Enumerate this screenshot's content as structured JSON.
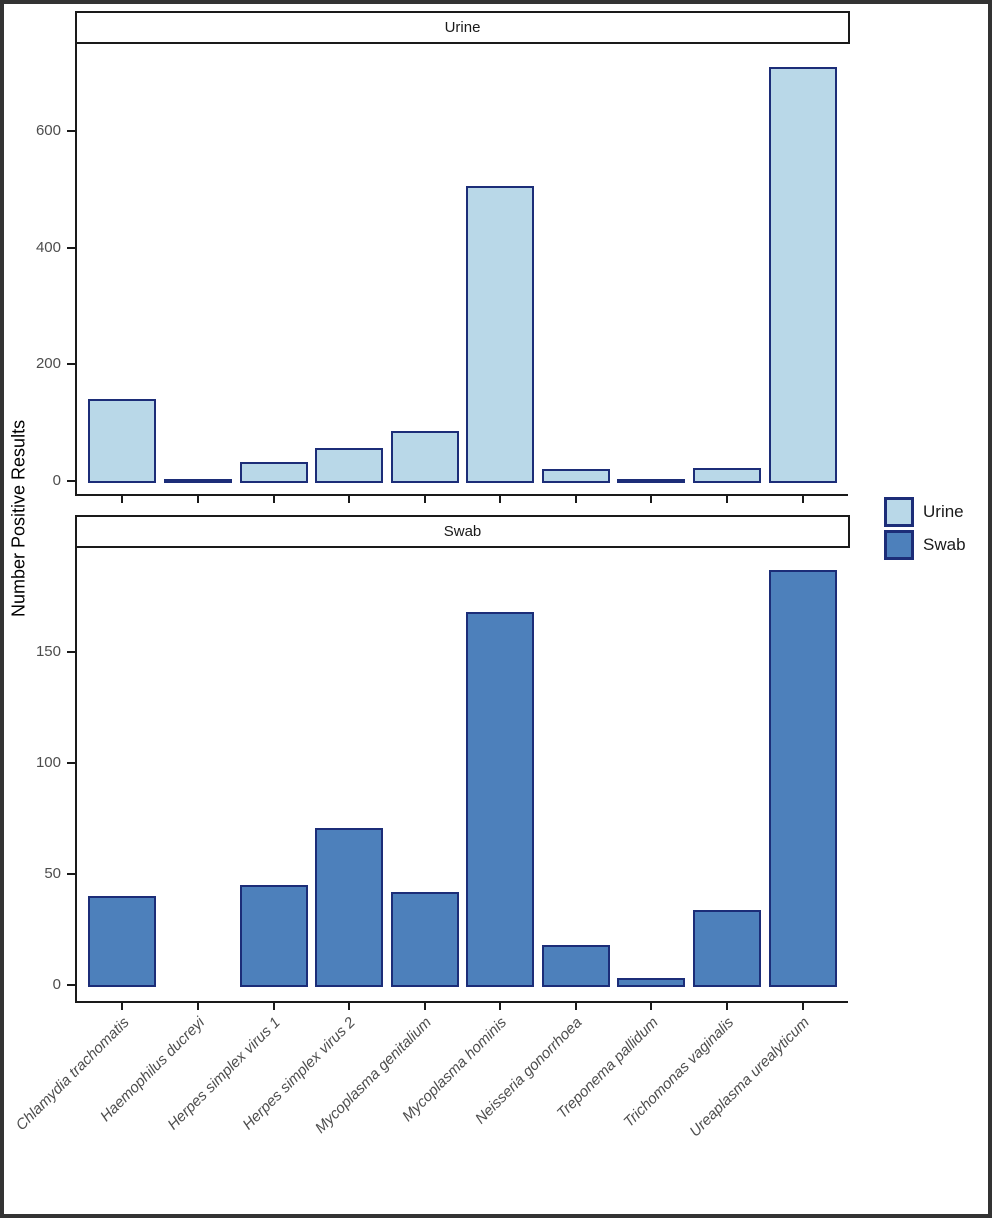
{
  "figure": {
    "ylabel": "Number Positive Results",
    "outer_border_color": "#333333",
    "axis_line_color": "#1a1a1a",
    "tick_label_color": "#4d4d4d"
  },
  "legend": {
    "position": "right",
    "swatch_border": "#1c2d78",
    "items": [
      {
        "label": "Urine",
        "color": "#b9d8e8"
      },
      {
        "label": "Swab",
        "color": "#4d80bb"
      }
    ]
  },
  "chart_data": [
    {
      "type": "bar",
      "facet": "Urine",
      "categories": [
        "Chlamydia trachomatis",
        "Haemophilus ducreyi",
        "Herpes simplex virus 1",
        "Herpes simplex virus 2",
        "Mycoplasma genitalium",
        "Mycoplasma hominis",
        "Neisseria gonorrhoea",
        "Treponema pallidum",
        "Trichomonas vaginalis",
        "Ureaplasma urealyticum"
      ],
      "values": [
        140,
        1,
        32,
        56,
        86,
        505,
        20,
        1,
        22,
        710
      ],
      "yticks": [
        0,
        200,
        400,
        600
      ],
      "ylim": [
        0,
        745
      ],
      "ylabel": "Number Positive Results",
      "xlabel": "",
      "grid": false,
      "bar_fill": "#b9d8e8",
      "bar_border": "#1c2d78"
    },
    {
      "type": "bar",
      "facet": "Swab",
      "categories": [
        "Chlamydia trachomatis",
        "Haemophilus ducreyi",
        "Herpes simplex virus 1",
        "Herpes simplex virus 2",
        "Mycoplasma genitalium",
        "Mycoplasma hominis",
        "Neisseria gonorrhoea",
        "Treponema pallidum",
        "Trichomonas vaginalis",
        "Ureaplasma urealyticum"
      ],
      "values": [
        40,
        0,
        45,
        71,
        42,
        168,
        18,
        3,
        34,
        187
      ],
      "yticks": [
        0,
        50,
        100,
        150
      ],
      "ylim": [
        0,
        197
      ],
      "ylabel": "Number Positive Results",
      "xlabel": "",
      "grid": false,
      "bar_fill": "#4d80bb",
      "bar_border": "#1c2d78"
    }
  ]
}
